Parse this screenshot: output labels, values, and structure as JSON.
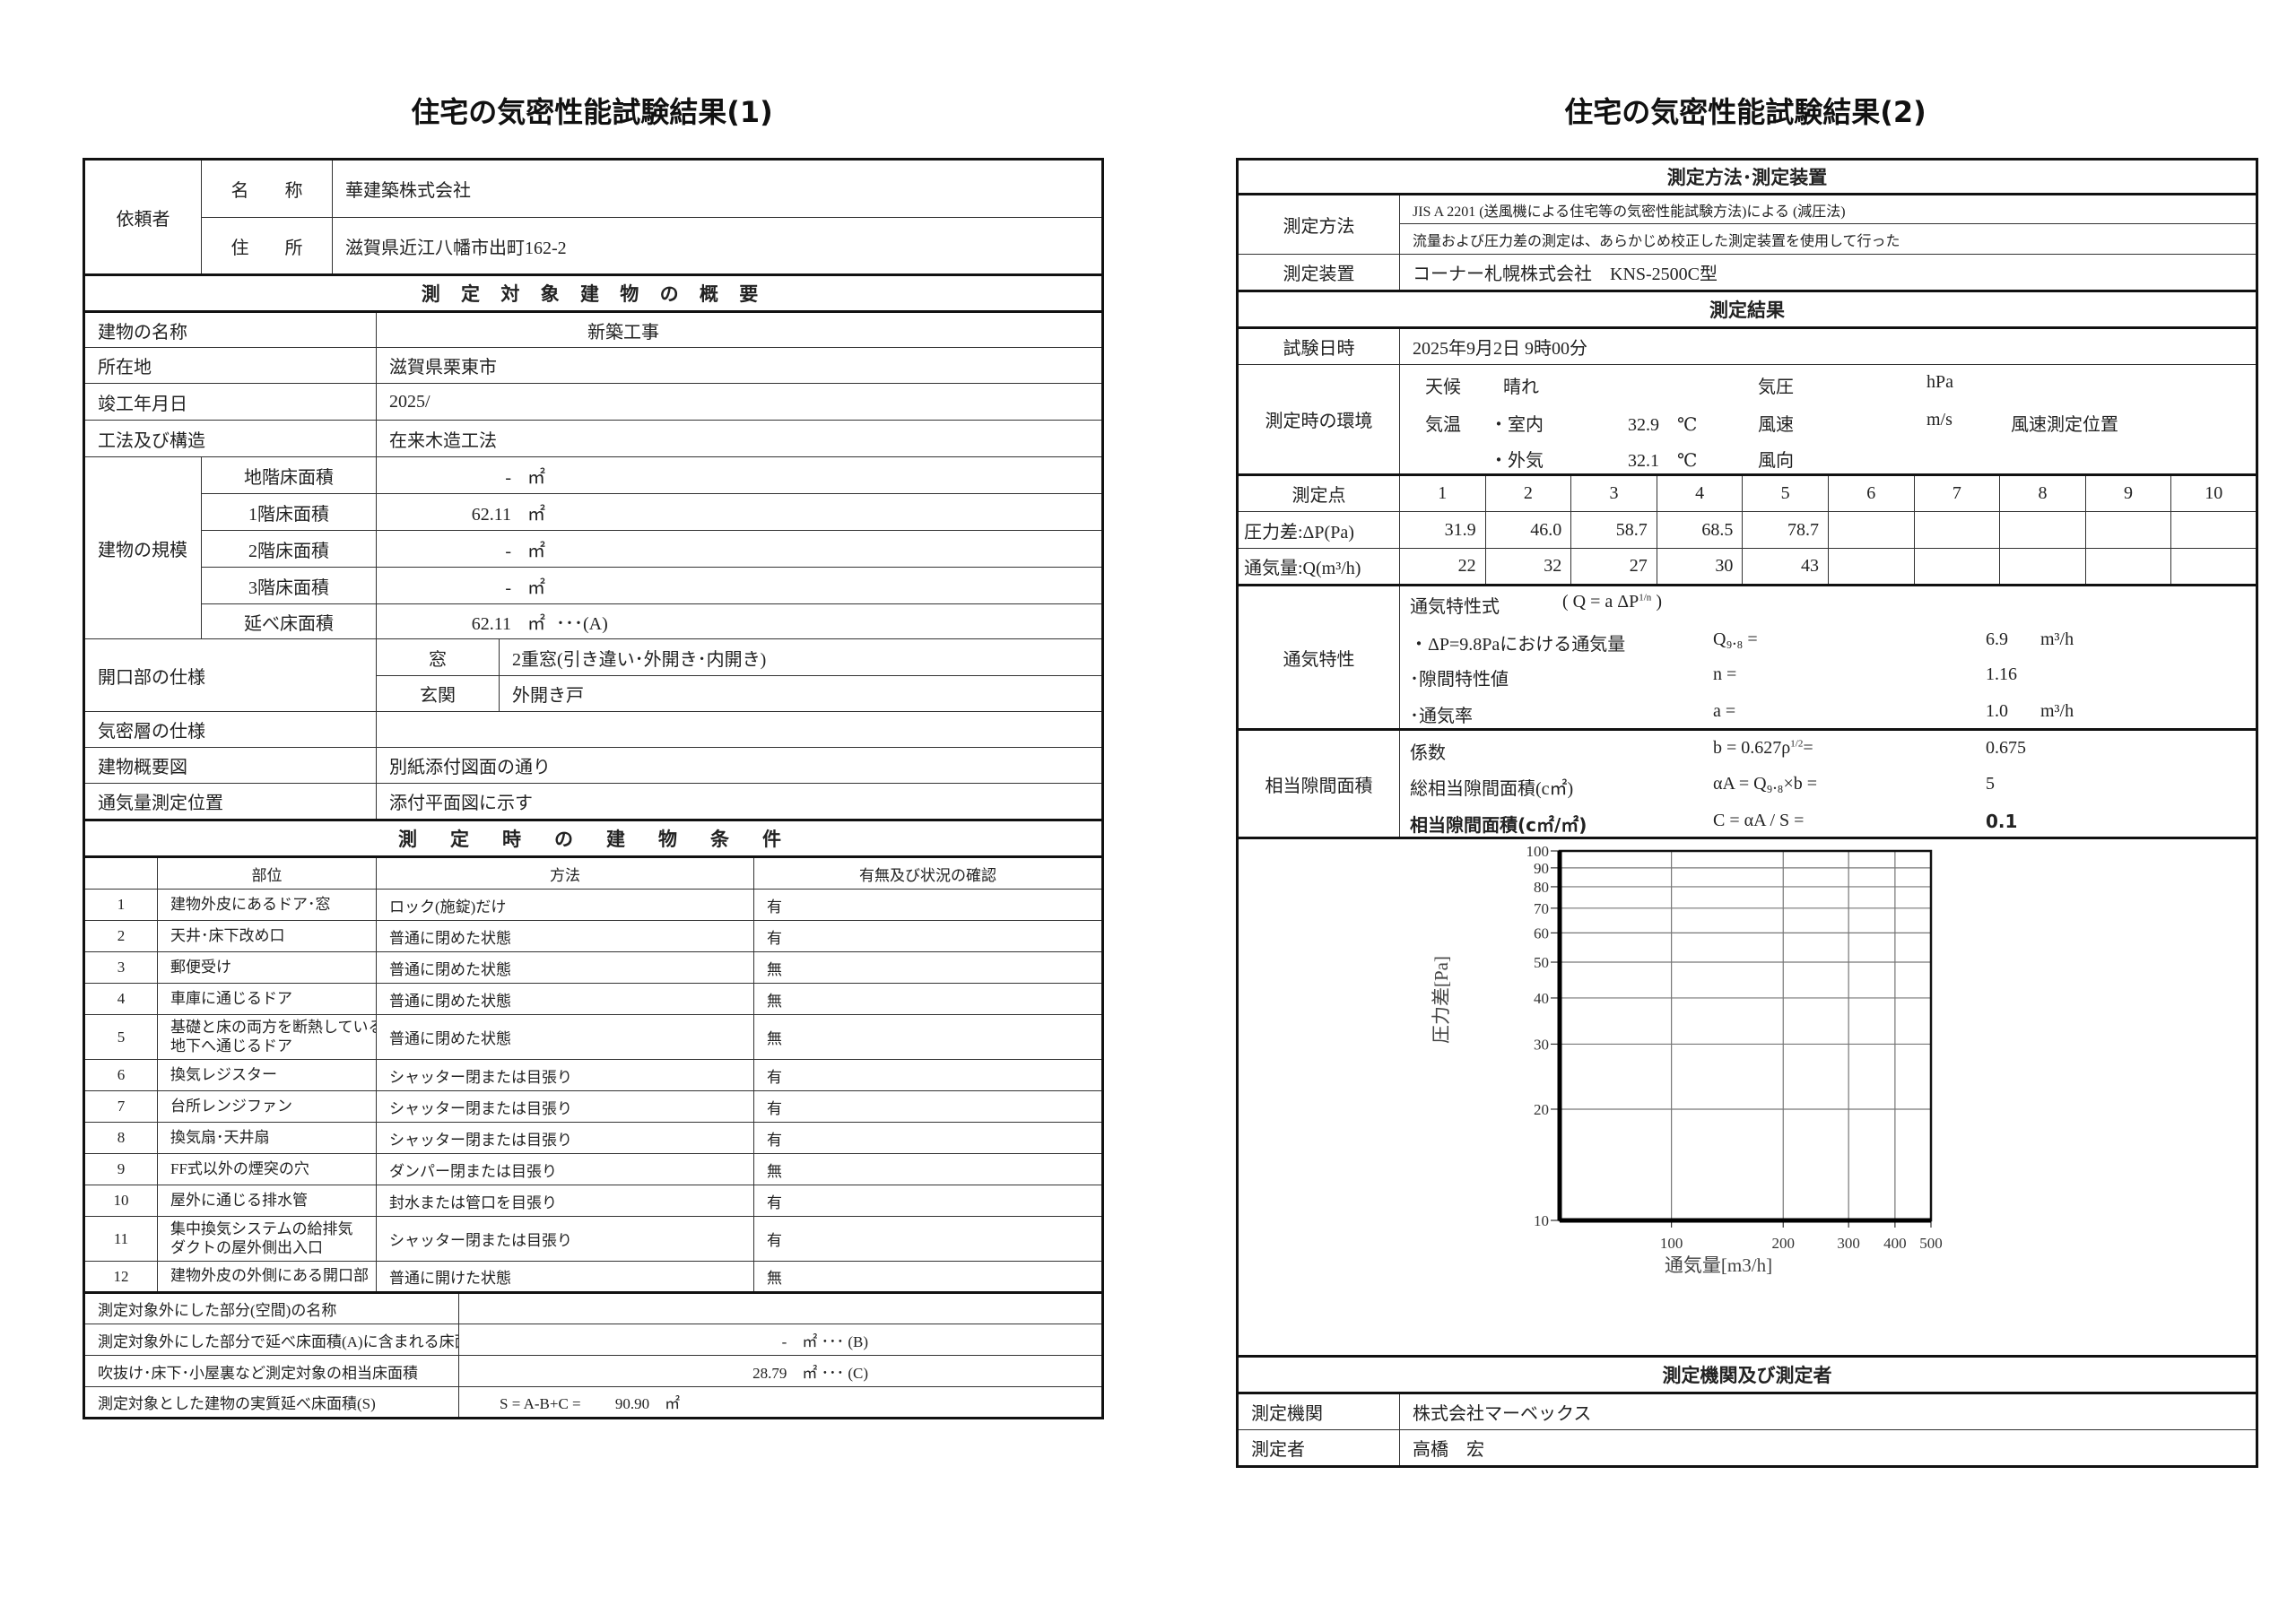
{
  "left": {
    "title": "住宅の気密性能試験結果(1)",
    "client": {
      "label": "依頼者",
      "name_label": "名　　称",
      "name": "華建築株式会社",
      "address_label": "住　　所",
      "address": "滋賀県近江八幡市出町162-2"
    },
    "overview": {
      "header": "測 定 対 象 建 物 の 概 要",
      "rows": [
        {
          "label": "建物の名称",
          "value": "新築工事"
        },
        {
          "label": "所在地",
          "value": "滋賀県栗東市"
        },
        {
          "label": "竣工年月日",
          "value": "2025/"
        },
        {
          "label": "工法及び構造",
          "value": "在来木造工法"
        }
      ],
      "scale": {
        "label": "建物の規模",
        "items": [
          {
            "label": "地階床面積",
            "value": "-",
            "unit": "㎡",
            "note": ""
          },
          {
            "label": "1階床面積",
            "value": "62.11",
            "unit": "㎡",
            "note": ""
          },
          {
            "label": "2階床面積",
            "value": "-",
            "unit": "㎡",
            "note": ""
          },
          {
            "label": "3階床面積",
            "value": "-",
            "unit": "㎡",
            "note": ""
          },
          {
            "label": "延べ床面積",
            "value": "62.11",
            "unit": "㎡",
            "note": "･･･(A)"
          }
        ]
      },
      "openings": {
        "label": "開口部の仕様",
        "items": [
          {
            "label": "窓",
            "value": "2重窓(引き違い･外開き･内開き)"
          },
          {
            "label": "玄関",
            "value": "外開き戸"
          }
        ]
      },
      "rows2": [
        {
          "label": "気密層の仕様",
          "value": ""
        },
        {
          "label": "建物概要図",
          "value": "別紙添付図面の通り"
        },
        {
          "label": "通気量測定位置",
          "value": "添付平面図に示す"
        }
      ]
    },
    "conditions": {
      "header": "測　定　時　の　建　物　条　件",
      "columns": [
        "部位",
        "方法",
        "有無及び状況の確認"
      ],
      "rows": [
        {
          "no": "1",
          "part": [
            "建物外皮にあるドア･窓"
          ],
          "method": "ロック(施錠)だけ",
          "status": "有"
        },
        {
          "no": "2",
          "part": [
            "天井･床下改め口"
          ],
          "method": "普通に閉めた状態",
          "status": "有"
        },
        {
          "no": "3",
          "part": [
            "郵便受け"
          ],
          "method": "普通に閉めた状態",
          "status": "無"
        },
        {
          "no": "4",
          "part": [
            "車庫に通じるドア"
          ],
          "method": "普通に閉めた状態",
          "status": "無"
        },
        {
          "no": "5",
          "part": [
            "基礎と床の両方を断熱している",
            "地下へ通じるドア"
          ],
          "method": "普通に閉めた状態",
          "status": "無"
        },
        {
          "no": "6",
          "part": [
            "換気レジスター"
          ],
          "method": "シャッター閉または目張り",
          "status": "有"
        },
        {
          "no": "7",
          "part": [
            "台所レンジファン"
          ],
          "method": "シャッター閉または目張り",
          "status": "有"
        },
        {
          "no": "8",
          "part": [
            "換気扇･天井扇"
          ],
          "method": "シャッター閉または目張り",
          "status": "有"
        },
        {
          "no": "9",
          "part": [
            "FF式以外の煙突の穴"
          ],
          "method": "ダンパー閉または目張り",
          "status": "無"
        },
        {
          "no": "10",
          "part": [
            "屋外に通じる排水管"
          ],
          "method": "封水または管口を目張り",
          "status": "有"
        },
        {
          "no": "11",
          "part": [
            "集中換気システムの給排気",
            "ダクトの屋外側出入口"
          ],
          "method": "シャッター閉または目張り",
          "status": "有"
        },
        {
          "no": "12",
          "part": [
            "建物外皮の外側にある開口部"
          ],
          "method": "普通に開けた状態",
          "status": "無"
        }
      ]
    },
    "summary": [
      {
        "label": "測定対象外にした部分(空間)の名称",
        "value": ""
      },
      {
        "label": "測定対象外にした部分で延べ床面積(A)に含まれる床面積",
        "value": "-　㎡ ･･･ (B)"
      },
      {
        "label": "吹抜け･床下･小屋裏など測定対象の相当床面積",
        "value": "28.79　㎡ ･･･ (C)"
      },
      {
        "label": "測定対象とした建物の実質延べ床面積(S)",
        "value": "S = A-B+C =　　 90.90　㎡"
      }
    ]
  },
  "right": {
    "title": "住宅の気密性能試験結果(2)",
    "method_header": "測定方法･測定装置",
    "method_label": "測定方法",
    "method_lines": [
      "JIS A 2201 (送風機による住宅等の気密性能試験方法)による (減圧法)",
      "流量および圧力差の測定は、あらかじめ校正した測定装置を使用して行った"
    ],
    "device_label": "測定装置",
    "device": "コーナー札幌株式会社　KNS-2500C型",
    "results_header": "測定結果",
    "date_label": "試験日時",
    "date": "2025年9月2日 9時00分",
    "env": {
      "label": "測定時の環境",
      "weather_label": "天候",
      "weather": "晴れ",
      "pressure_label": "気圧",
      "pressure_unit": "hPa",
      "temp_label": "気温",
      "indoor_label": "・室内",
      "indoor": "32.9　℃",
      "outdoor_label": "・外気",
      "outdoor": "32.1　℃",
      "wind_speed_label": "風速",
      "wind_speed_unit": "m/s",
      "wind_position_label": "風速測定位置",
      "wind_dir_label": "風向"
    },
    "points": {
      "label": "測定点",
      "numbers": [
        "1",
        "2",
        "3",
        "4",
        "5",
        "6",
        "7",
        "8",
        "9",
        "10"
      ],
      "pressure_label": "圧力差:ΔP(Pa)",
      "pressure": [
        "31.9",
        "46.0",
        "58.7",
        "68.5",
        "78.7",
        "",
        "",
        "",
        "",
        ""
      ],
      "flow_label": "通気量:Q(m³/h)",
      "flow": [
        "22",
        "32",
        "27",
        "30",
        "43",
        "",
        "",
        "",
        "",
        ""
      ]
    },
    "airflow": {
      "label": "通気特性",
      "formula_label": "通気特性式",
      "formula": "( Q = a ΔP",
      "formula_exp": "1/n",
      "formula_end": " )",
      "q98_label": "・ΔP=9.8Paにおける通気量",
      "q98_sym": "Q₉.₈ =",
      "q98": "6.9",
      "q98_unit": "m³/h",
      "n_label": "･隙間特性値",
      "n_sym": "n =",
      "n": "1.16",
      "a_label": "･通気率",
      "a_sym": "a =",
      "a": "1.0",
      "a_unit": "m³/h"
    },
    "gap": {
      "label": "相当隙間面積",
      "coef_label": "係数",
      "coef_sym": "b = 0.627ρ",
      "coef_exp": "1/2",
      "coef_eq": "=",
      "coef": "0.675",
      "total_label": "総相当隙間面積(c㎡)",
      "total_sym": "αA = Q₉.₈×b =",
      "total": "5",
      "c_label": "相当隙間面積(c㎡/㎡)",
      "c_sym": "C = αA / S =",
      "c": "0.1"
    },
    "org_header": "測定機関及び測定者",
    "org_label": "測定機関",
    "org": "株式会社マーベックス",
    "person_label": "測定者",
    "person": "高橋　宏"
  },
  "chart_data": {
    "type": "scatter",
    "x_scale": "log",
    "y_scale": "log",
    "xlim": [
      50,
      500
    ],
    "ylim": [
      10,
      100
    ],
    "x_ticks": [
      "100",
      "200",
      "300",
      "400",
      "500"
    ],
    "y_ticks": [
      "10",
      "20",
      "30",
      "40",
      "50",
      "60",
      "70",
      "80",
      "90",
      "100"
    ],
    "xlabel": "通気量[m3/h]",
    "ylabel": "圧力差[Pa]",
    "grid": true,
    "series": []
  }
}
